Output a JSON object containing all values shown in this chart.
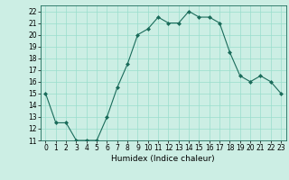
{
  "x": [
    0,
    1,
    2,
    3,
    4,
    5,
    6,
    7,
    8,
    9,
    10,
    11,
    12,
    13,
    14,
    15,
    16,
    17,
    18,
    19,
    20,
    21,
    22,
    23
  ],
  "y": [
    15,
    12.5,
    12.5,
    11,
    11,
    11,
    13,
    15.5,
    17.5,
    20,
    20.5,
    21.5,
    21,
    21,
    22,
    21.5,
    21.5,
    21,
    18.5,
    16.5,
    16,
    16.5,
    16,
    15
  ],
  "line_color": "#1a6b5a",
  "marker": "D",
  "marker_size": 2,
  "bg_color": "#cceee4",
  "grid_color": "#99ddcc",
  "xlabel": "Humidex (Indice chaleur)",
  "ylim": [
    11,
    22.5
  ],
  "xlim": [
    -0.5,
    23.5
  ],
  "yticks": [
    11,
    12,
    13,
    14,
    15,
    16,
    17,
    18,
    19,
    20,
    21,
    22
  ],
  "xticks": [
    0,
    1,
    2,
    3,
    4,
    5,
    6,
    7,
    8,
    9,
    10,
    11,
    12,
    13,
    14,
    15,
    16,
    17,
    18,
    19,
    20,
    21,
    22,
    23
  ],
  "tick_fontsize": 5.5,
  "label_fontsize": 6.5
}
